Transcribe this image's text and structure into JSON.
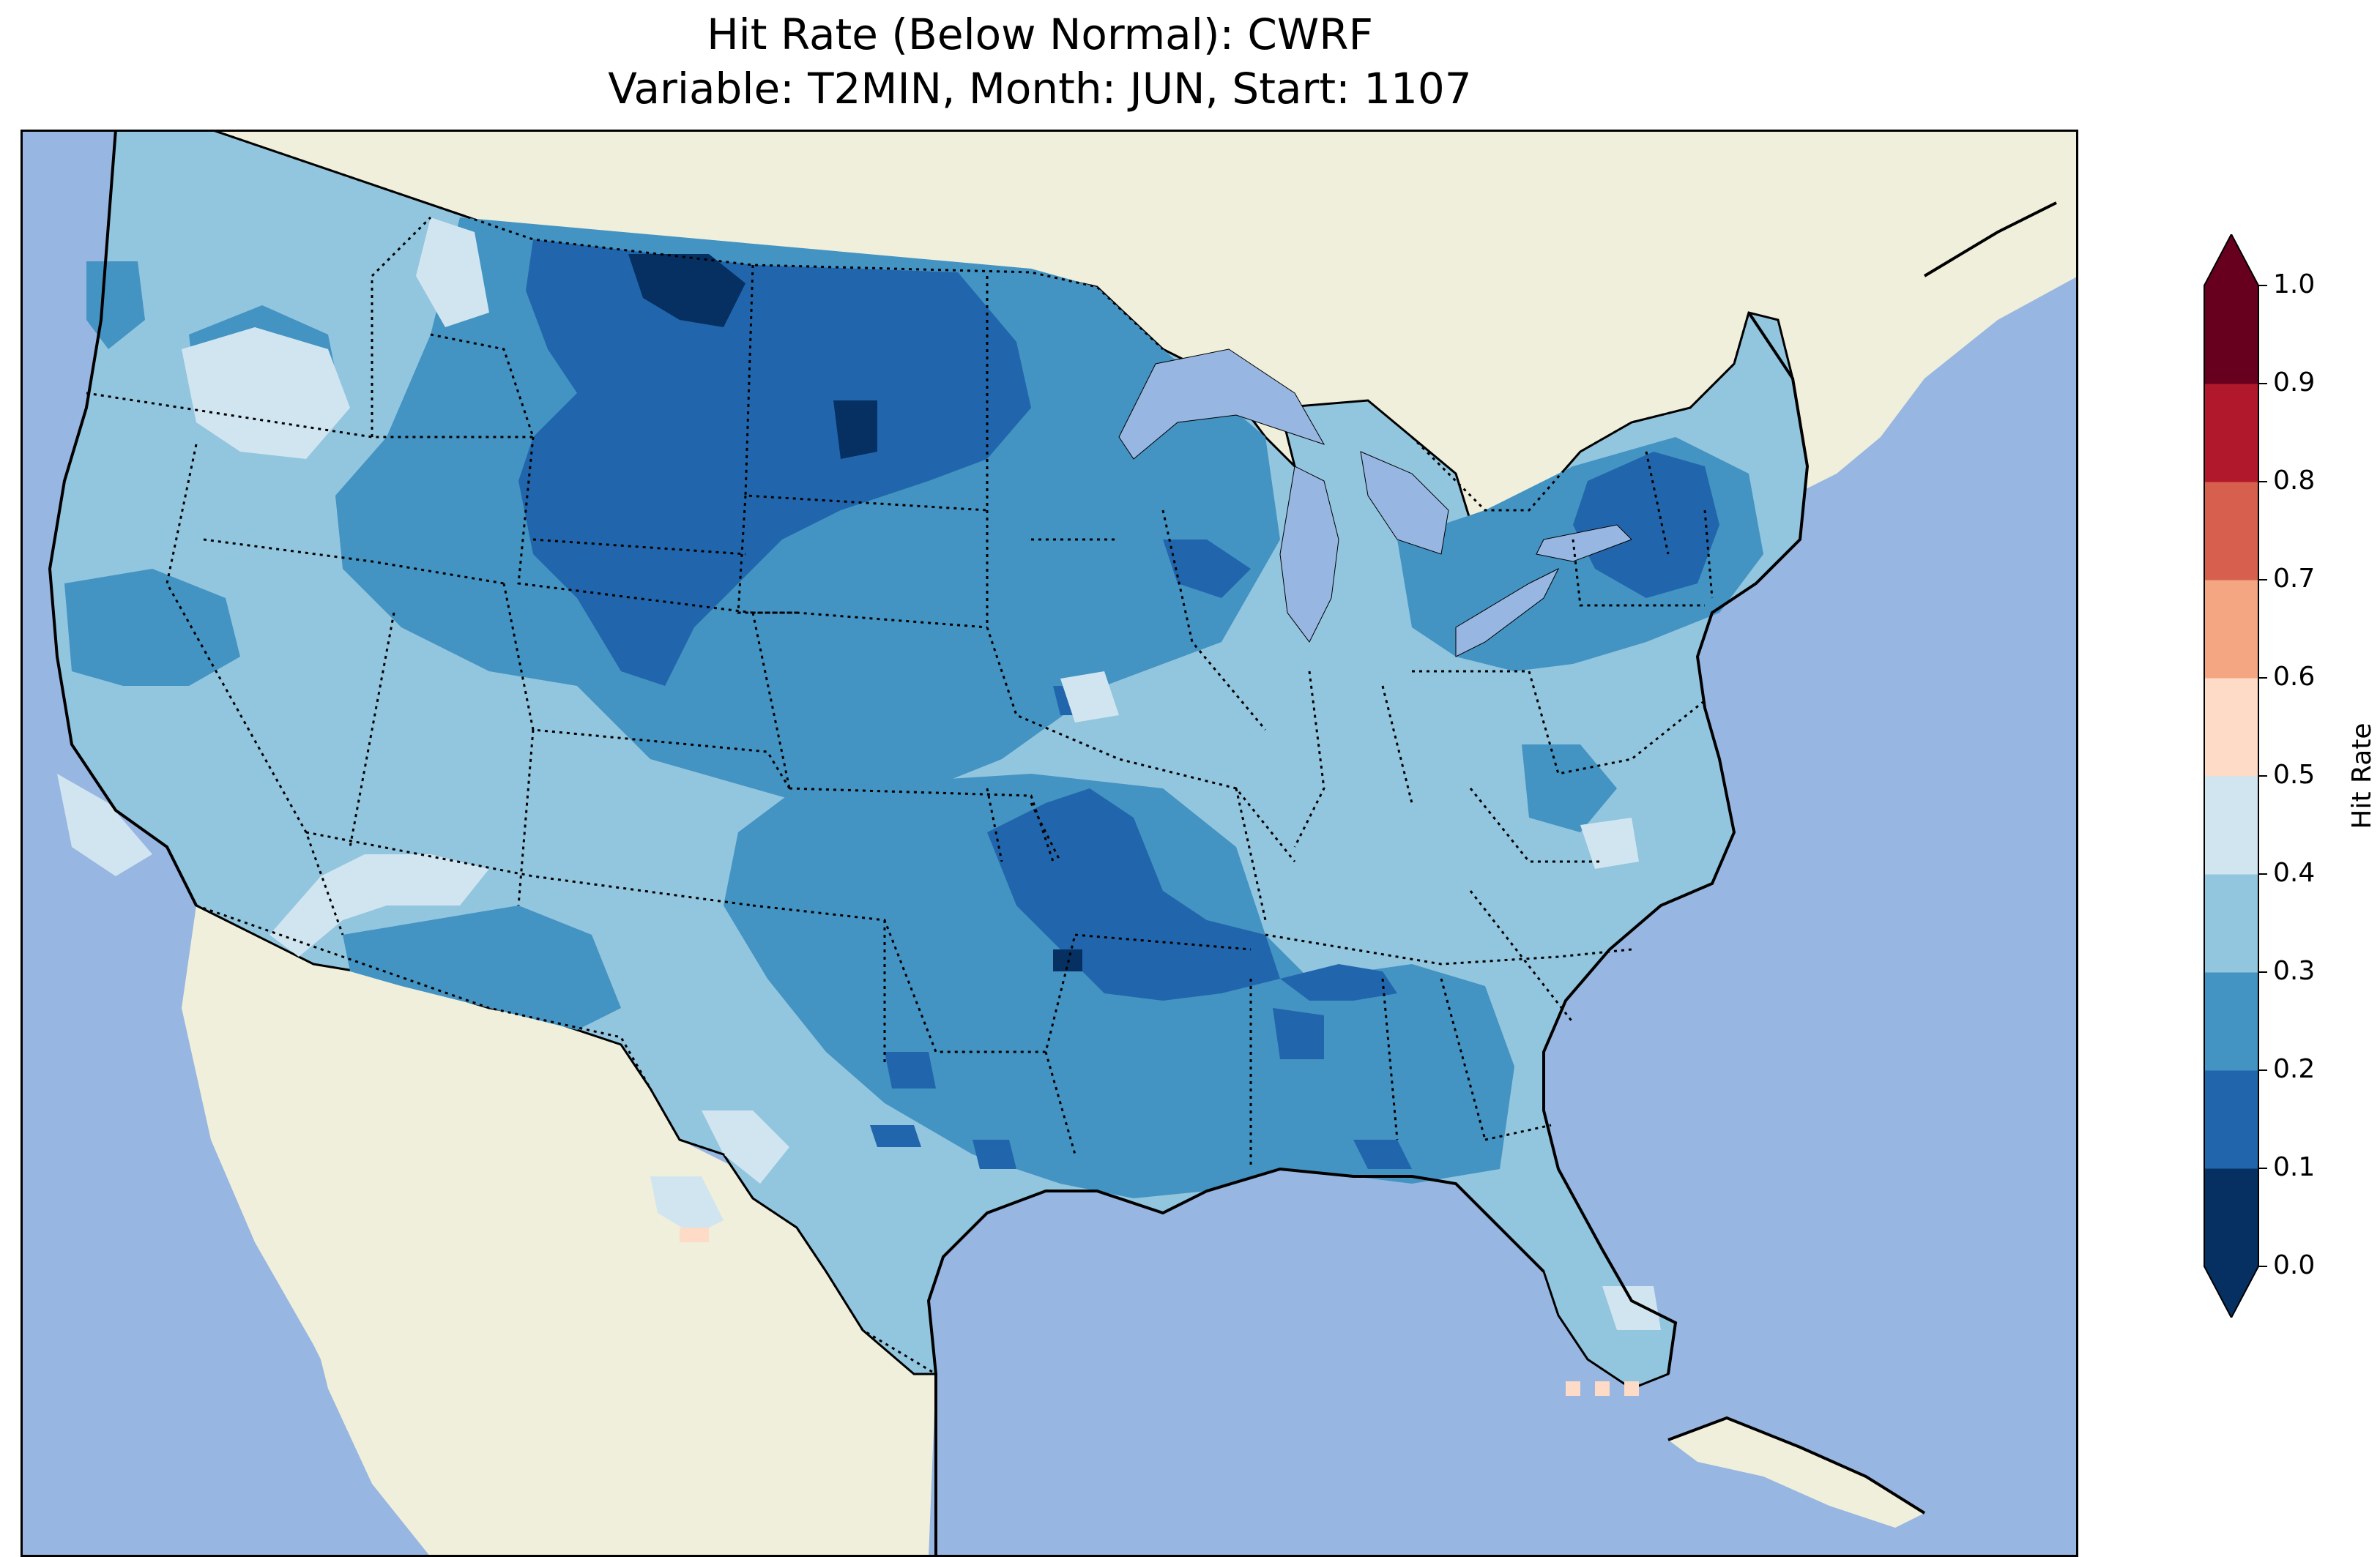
{
  "title": {
    "line1": "Hit Rate (Below Normal): CWRF",
    "line2": "Variable: T2MIN, Month: JUN, Start: 1107"
  },
  "colors": {
    "ocean": "#97b6e1",
    "land": "#efefdb",
    "lakes": "#97b6e1",
    "border": "#000000"
  },
  "colorbar": {
    "label": "Hit Rate",
    "ticks": [
      "0.0",
      "0.1",
      "0.2",
      "0.3",
      "0.4",
      "0.5",
      "0.6",
      "0.7",
      "0.8",
      "0.9",
      "1.0"
    ],
    "levels": [
      {
        "range": "0.0-0.1",
        "color": "#053061"
      },
      {
        "range": "0.1-0.2",
        "color": "#2166ac"
      },
      {
        "range": "0.2-0.3",
        "color": "#4393c3"
      },
      {
        "range": "0.3-0.4",
        "color": "#92c5de"
      },
      {
        "range": "0.4-0.5",
        "color": "#d1e5f0"
      },
      {
        "range": "0.5-0.6",
        "color": "#fddbc7"
      },
      {
        "range": "0.6-0.7",
        "color": "#f4a582"
      },
      {
        "range": "0.7-0.8",
        "color": "#d6604d"
      },
      {
        "range": "0.8-0.9",
        "color": "#b2182b"
      },
      {
        "range": "0.9-1.0",
        "color": "#67001f"
      }
    ],
    "extend": "both"
  }
}
